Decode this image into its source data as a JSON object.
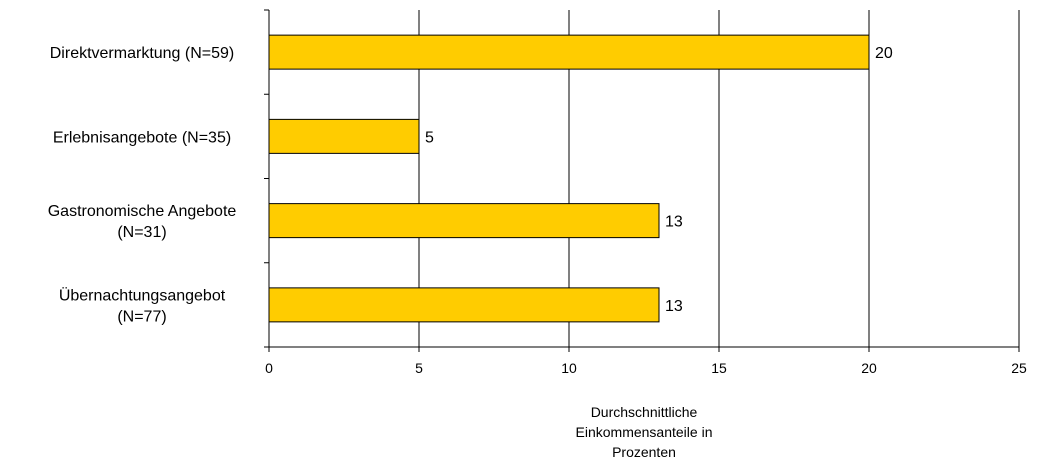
{
  "chart_data": {
    "type": "bar",
    "orientation": "horizontal",
    "categories": [
      [
        "Direktvermarktung (N=59)"
      ],
      [
        "Erlebnisangebote (N=35)"
      ],
      [
        "Gastronomische Angebote",
        "(N=31)"
      ],
      [
        "Übernachtungsangebot",
        "(N=77)"
      ]
    ],
    "values": [
      20,
      5,
      13,
      13
    ],
    "data_labels": [
      "20",
      "5",
      "13",
      "13"
    ],
    "xlabel": [
      "Durchschnittliche",
      "Einkommensanteile in",
      "Prozenten"
    ],
    "xlim": [
      0,
      25
    ],
    "xticks": [
      0,
      5,
      10,
      15,
      20,
      25
    ],
    "grid": "vertical",
    "legend": "none",
    "colors": {
      "bar_fill": "#FFCC00",
      "bar_stroke": "#000000",
      "grid": "#000000"
    }
  }
}
